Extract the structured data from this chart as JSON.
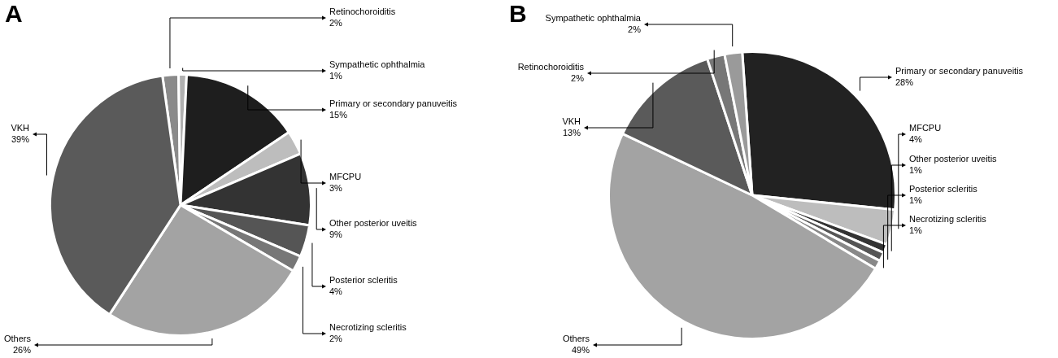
{
  "chart_data": [
    {
      "type": "pie",
      "title": "A",
      "categories": [
        "Retinochoroiditis",
        "Sympathetic ophthalmia",
        "Primary or secondary panuveitis",
        "MFCPU",
        "Other posterior uveitis",
        "Posterior scleritis",
        "Necrotizing scleritis",
        "Others",
        "VKH"
      ],
      "values": [
        2,
        1,
        15,
        3,
        9,
        4,
        2,
        26,
        39
      ],
      "value_labels": [
        "2%",
        "1%",
        "15%",
        "3%",
        "9%",
        "4%",
        "2%",
        "26%",
        "39%"
      ],
      "colors": [
        "#8a8a8a",
        "#b0b0b0",
        "#1e1e1e",
        "#bdbdbd",
        "#333333",
        "#555555",
        "#777777",
        "#a3a3a3",
        "#5a5a5a"
      ]
    },
    {
      "type": "pie",
      "title": "B",
      "categories": [
        "Primary or secondary panuveitis",
        "MFCPU",
        "Other posterior uveitis",
        "Posterior scleritis",
        "Necrotizing scleritis",
        "Others",
        "VKH",
        "Retinochoroiditis",
        "Sympathetic ophthalmia"
      ],
      "values": [
        28,
        4,
        1,
        1,
        1,
        49,
        13,
        2,
        2
      ],
      "value_labels": [
        "28%",
        "4%",
        "1%",
        "1%",
        "1%",
        "49%",
        "13%",
        "2%",
        "2%"
      ],
      "colors": [
        "#222222",
        "#bdbdbd",
        "#333333",
        "#555555",
        "#888888",
        "#a3a3a3",
        "#5a5a5a",
        "#777777",
        "#9a9a9a"
      ]
    }
  ]
}
